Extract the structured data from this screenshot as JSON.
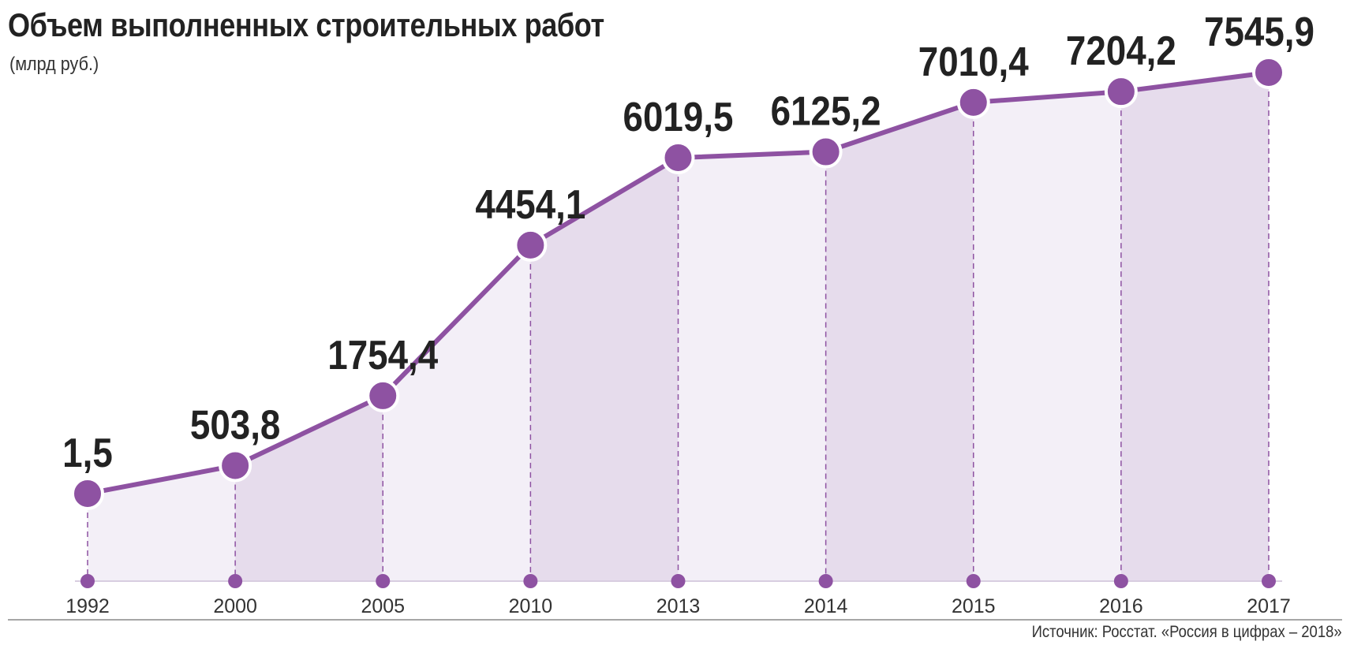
{
  "title": "Объем выполненных строительных работ",
  "subtitle": "(млрд руб.)",
  "source": "Источник: Росстат. «Россия в цифрах – 2018»",
  "colors": {
    "line": "#8e52a2",
    "fill_light": "#f3eff7",
    "fill_dark": "#e6dcec",
    "text": "#222222"
  },
  "chart_data": {
    "type": "area",
    "title": "Объем выполненных строительных работ",
    "subtitle": "(млрд руб.)",
    "xlabel": "",
    "ylabel": "",
    "grid": false,
    "categories": [
      "1992",
      "2000",
      "2005",
      "2010",
      "2013",
      "2014",
      "2015",
      "2016",
      "2017"
    ],
    "values": [
      1.5,
      503.8,
      1754.4,
      4454.1,
      6019.5,
      6125.2,
      7010.4,
      7204.2,
      7545.9
    ],
    "value_labels": [
      "1,5",
      "503,8",
      "1754,4",
      "4454,1",
      "6019,5",
      "6125,2",
      "7010,4",
      "7204,2",
      "7545,9"
    ]
  }
}
